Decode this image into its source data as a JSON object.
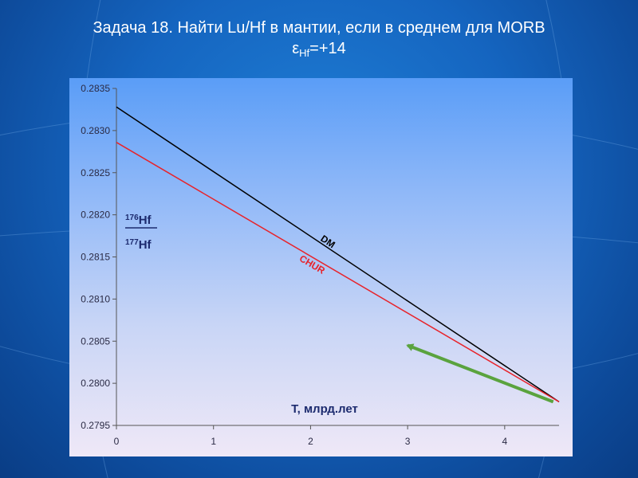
{
  "slide": {
    "title_line1": "Задача 18. Найти Lu/Hf в мантии, если в среднем для MORB",
    "title_epsilon": "ε",
    "title_sub": "Hf",
    "title_value": "=+14"
  },
  "colors": {
    "dm": "#000000",
    "chur": "#e8232a",
    "arrow": "#5aa33e",
    "text_dark": "#1c2a6e"
  },
  "chart_data": {
    "type": "line",
    "xlabel": "T, млрд.лет",
    "ylabel": {
      "numerator_mass": "176",
      "numerator_element": "Hf",
      "denominator_mass": "177",
      "denominator_element": "Hf"
    },
    "xlim": [
      0,
      4.56
    ],
    "ylim": [
      0.2795,
      0.2835
    ],
    "x_ticks": [
      "0",
      "1",
      "2",
      "3",
      "4"
    ],
    "y_ticks": [
      "0.2795",
      "0.2800",
      "0.2805",
      "0.2810",
      "0.2815",
      "0.2820",
      "0.2825",
      "0.2830",
      "0.2835"
    ],
    "grid": false,
    "series": [
      {
        "name": "DM",
        "color": "#000000",
        "x": [
          0,
          4.56
        ],
        "y": [
          0.28328,
          0.27978
        ]
      },
      {
        "name": "CHUR",
        "color": "#e8232a",
        "x": [
          0,
          4.56
        ],
        "y": [
          0.28286,
          0.27978
        ]
      }
    ],
    "annotations": [
      {
        "type": "arrow",
        "color": "#5aa33e",
        "from": {
          "x": 4.5,
          "y": 0.27978
        },
        "to": {
          "x": 3.0,
          "y": 0.28045
        }
      }
    ]
  }
}
